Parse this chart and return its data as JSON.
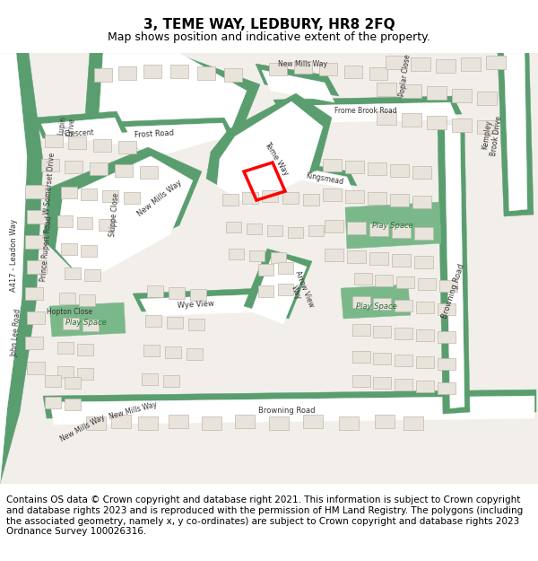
{
  "title": "3, TEME WAY, LEDBURY, HR8 2FQ",
  "subtitle": "Map shows position and indicative extent of the property.",
  "footer": "Contains OS data © Crown copyright and database right 2021. This information is subject to Crown copyright and database rights 2023 and is reproduced with the permission of HM Land Registry. The polygons (including the associated geometry, namely x, y co-ordinates) are subject to Crown copyright and database rights 2023 Ordnance Survey 100026316.",
  "map_bg": "#f2eeea",
  "road_green": "#5a9e6f",
  "light_green": "#7ab88a",
  "building_fill": "#e8e4dc",
  "building_stroke": "#c0b8ac",
  "road_white": "#ffffff",
  "title_fontsize": 11,
  "subtitle_fontsize": 9,
  "footer_fontsize": 7.5,
  "fig_width": 6.0,
  "fig_height": 6.25,
  "highlight_color": "#ff0000",
  "highlight_lw": 2.5,
  "label_color": "#333333",
  "play_color": "#2d6e3d"
}
